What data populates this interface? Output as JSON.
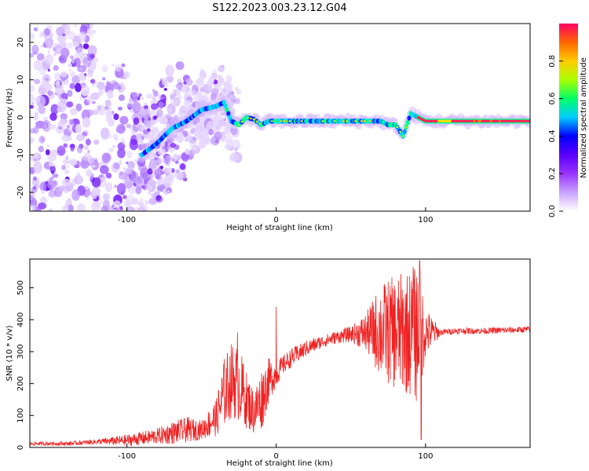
{
  "title": "S122.2023.003.23.12.G04",
  "chart_data": [
    {
      "type": "heatmap",
      "xlabel": "Height of straight line (km)",
      "ylabel": "Frequency (Hz)",
      "xlim": [
        -165,
        170
      ],
      "ylim": [
        -25,
        25
      ],
      "xticks": [
        -100,
        0,
        100
      ],
      "yticks": [
        -20,
        -10,
        0,
        10,
        20
      ],
      "colorbar": {
        "label": "Normalized spectral amplitude",
        "range": [
          0,
          1
        ],
        "ticks": [
          "0.0",
          "0.2",
          "0.4",
          "0.6",
          "0.8"
        ],
        "colors": [
          "#ffffff",
          "#c9a3ff",
          "#9933ff",
          "#5a00ff",
          "#0000ff",
          "#00ccff",
          "#00ff66",
          "#aaff00",
          "#ffcc00",
          "#ff6600",
          "#ff0066"
        ]
      },
      "ridge": {
        "x": [
          -90,
          -80,
          -70,
          -60,
          -50,
          -40,
          -35,
          -30,
          -25,
          -20,
          -15,
          -10,
          -5,
          0,
          20,
          40,
          50,
          60,
          70,
          75,
          80,
          85,
          90,
          95,
          100,
          120,
          140,
          160,
          170
        ],
        "y": [
          -10,
          -7,
          -3,
          -1,
          2,
          3,
          4,
          -1,
          -2,
          0,
          -0.5,
          -2,
          -1,
          -1,
          -1,
          -1,
          -1,
          -1,
          -1,
          -2,
          -2,
          -5,
          1,
          0,
          -1,
          -1,
          -1,
          -1,
          -1
        ]
      }
    },
    {
      "type": "line",
      "xlabel": "Height of straight line (km)",
      "ylabel": "SNR (10 * v/v)",
      "xlim": [
        -165,
        170
      ],
      "ylim": [
        0,
        590
      ],
      "xticks": [
        -100,
        0,
        100
      ],
      "yticks": [
        0,
        100,
        200,
        300,
        400,
        500
      ],
      "color": "#ee2222",
      "envelope": {
        "x": [
          -165,
          -140,
          -120,
          -100,
          -80,
          -70,
          -60,
          -50,
          -40,
          -35,
          -30,
          -25,
          -20,
          -15,
          -10,
          -5,
          0,
          5,
          10,
          20,
          30,
          40,
          50,
          60,
          70,
          80,
          90,
          95,
          100,
          110,
          120,
          140,
          160,
          170
        ],
        "mean": [
          12,
          12,
          18,
          22,
          35,
          45,
          55,
          55,
          95,
          170,
          210,
          200,
          150,
          110,
          150,
          210,
          230,
          260,
          280,
          310,
          330,
          345,
          355,
          360,
          365,
          360,
          360,
          360,
          360,
          360,
          365,
          365,
          368,
          370
        ],
        "spread": [
          6,
          6,
          8,
          18,
          25,
          35,
          40,
          30,
          60,
          110,
          120,
          120,
          90,
          70,
          100,
          70,
          40,
          30,
          30,
          25,
          20,
          20,
          25,
          60,
          150,
          180,
          200,
          230,
          80,
          10,
          10,
          10,
          10,
          10
        ]
      },
      "peaks": [
        {
          "x": 0,
          "y": 440
        },
        {
          "x": -26,
          "y": 360
        },
        {
          "x": 73,
          "y": 490
        },
        {
          "x": 92,
          "y": 525
        },
        {
          "x": 96,
          "y": 585
        },
        {
          "x": 97,
          "y": 25
        }
      ]
    }
  ]
}
